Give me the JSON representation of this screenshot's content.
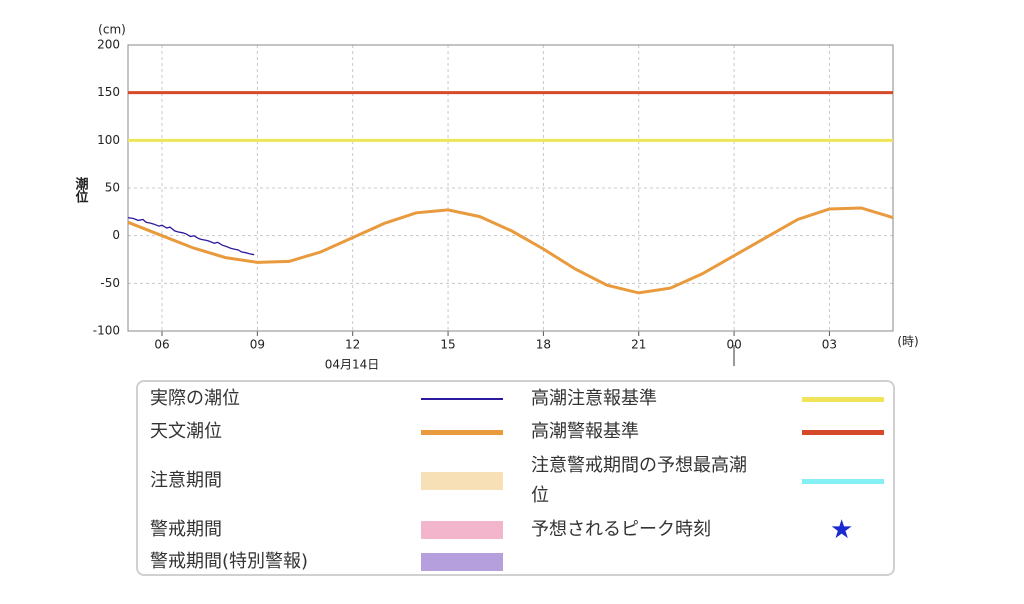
{
  "chart_data": {
    "type": "line",
    "y_unit": "(cm)",
    "x_unit": "(時)",
    "ylabel": "潮位",
    "date_label": "04月14日",
    "xlim": [
      4.93,
      29
    ],
    "xticks": [
      {
        "value": 6,
        "label": "06"
      },
      {
        "value": 9,
        "label": "09"
      },
      12,
      15,
      18,
      21,
      {
        "value": 24,
        "label": "00"
      },
      {
        "value": 27,
        "label": "03"
      }
    ],
    "ylim": [
      -100,
      200
    ],
    "yticks": [
      -100,
      -50,
      0,
      50,
      100,
      150,
      200
    ],
    "grid": true,
    "series": [
      {
        "name": "実際の潮位",
        "color": "#2b1a9e",
        "x": [
          4.93,
          5.1,
          5.25,
          5.4,
          5.5,
          5.65,
          5.75,
          5.9,
          6,
          6.15,
          6.25,
          6.4,
          6.5,
          6.65,
          6.75,
          6.9,
          7,
          7.15,
          7.25,
          7.4,
          7.5,
          7.65,
          7.75,
          7.9,
          8,
          8.15,
          8.25,
          8.4,
          8.5,
          8.65,
          8.75,
          8.9
        ],
        "values": [
          19,
          18,
          16,
          17,
          14,
          13,
          12,
          10,
          11,
          8,
          9,
          5,
          4,
          3,
          2,
          -1,
          0,
          -3,
          -4,
          -5,
          -6,
          -8,
          -7,
          -10,
          -11,
          -13,
          -14,
          -15,
          -17,
          -18,
          -19,
          -20
        ]
      },
      {
        "name": "天文潮位",
        "color": "#e89a3c",
        "x": [
          4.93,
          6,
          7,
          8,
          9,
          10,
          11,
          12,
          13,
          14,
          15,
          16,
          17,
          18,
          19,
          20,
          21,
          22,
          23,
          24,
          25,
          26,
          27,
          28,
          29
        ],
        "values": [
          14,
          0,
          -13,
          -23,
          -28,
          -27,
          -17,
          -2,
          13,
          24,
          27,
          20,
          5,
          -14,
          -35,
          -52,
          -60,
          -55,
          -40,
          -21,
          -2,
          17,
          28,
          29,
          19
        ]
      }
    ],
    "thresholds": [
      {
        "name": "高潮注意報基準",
        "color": "#efe45a",
        "value": 100
      },
      {
        "name": "高潮警報基準",
        "color": "#d64a2a",
        "value": 150
      }
    ],
    "legend_only": [
      {
        "name": "注意期間",
        "color": "#f7dfb6",
        "shape": "rect"
      },
      {
        "name": "警戒期間",
        "color": "#f3b5cc",
        "shape": "rect"
      },
      {
        "name": "警戒期間(特別警報)",
        "color": "#b59fdc",
        "shape": "rect"
      },
      {
        "name": "注意警戒期間の予想最高潮位",
        "color": "#84f0f6",
        "shape": "line"
      },
      {
        "name": "予想されるピーク時刻",
        "color": "#1a2ad0",
        "shape": "star"
      }
    ]
  }
}
